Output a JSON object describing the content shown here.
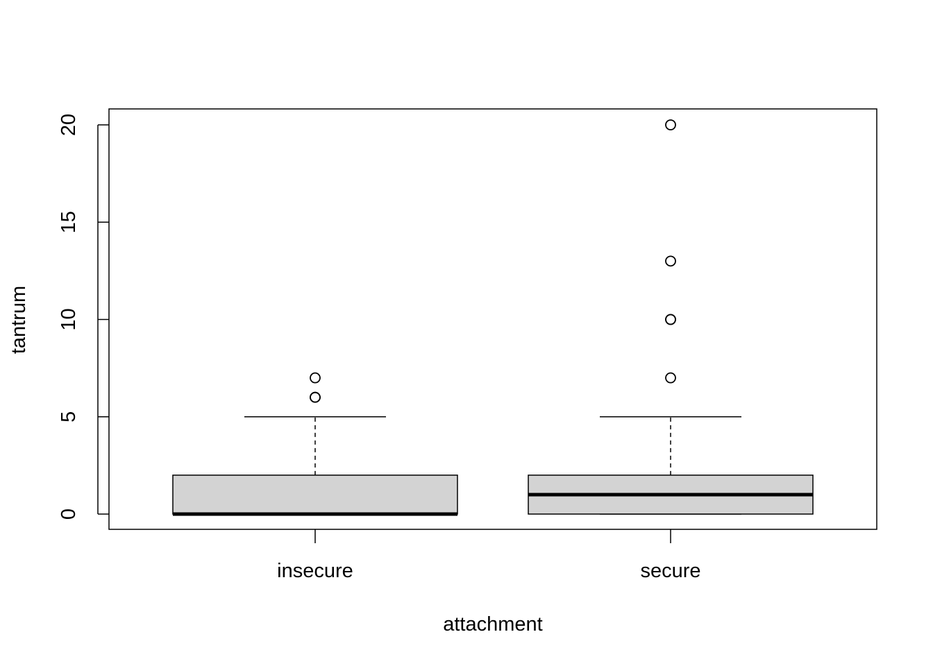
{
  "chart_data": {
    "type": "boxplot",
    "title": "",
    "xlabel": "attachment",
    "ylabel": "tantrum",
    "categories": [
      "insecure",
      "secure"
    ],
    "ylim": [
      -0.8,
      20.8
    ],
    "yticks": [
      0,
      5,
      10,
      15,
      20
    ],
    "box_fill": "#d3d3d3",
    "boxes": [
      {
        "category": "insecure",
        "q1": 0,
        "median": 0,
        "q3": 2,
        "whisker_low": 0,
        "whisker_high": 5,
        "outliers": [
          6,
          6,
          7
        ]
      },
      {
        "category": "secure",
        "q1": 0,
        "median": 1,
        "q3": 2,
        "whisker_low": 0,
        "whisker_high": 5,
        "outliers": [
          7,
          10,
          10,
          13,
          20
        ]
      }
    ]
  }
}
